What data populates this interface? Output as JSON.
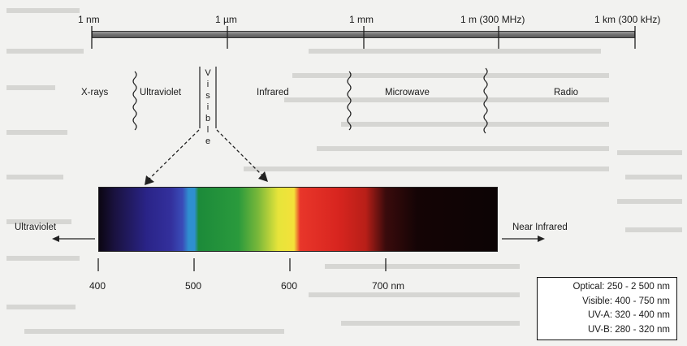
{
  "scale_labels": {
    "nm": "1 nm",
    "um": "1 µm",
    "mm": "1 mm",
    "m": "1 m (300 MHz)",
    "km": "1 km (300 kHz)"
  },
  "regions": {
    "xrays": "X-rays",
    "ultraviolet": "Ultraviolet",
    "visible_letters": [
      "V",
      "i",
      "s",
      "i",
      "b",
      "l",
      "e"
    ],
    "infrared": "Infrared",
    "microwave": "Microwave",
    "radio": "Radio"
  },
  "spectrum": {
    "left_label": "Ultraviolet",
    "right_label": "Near Infrared",
    "ticks": [
      "400",
      "500",
      "600",
      "700 nm"
    ]
  },
  "legend": [
    "Optical:  250 - 2 500 nm",
    "Visible:  400 - 750 nm",
    "UV-A:  320 - 400 nm",
    "UV-B:  280 - 320 nm"
  ],
  "colors": {
    "scale_bar": "#6e6e6e",
    "background": "#f2f2f0"
  }
}
